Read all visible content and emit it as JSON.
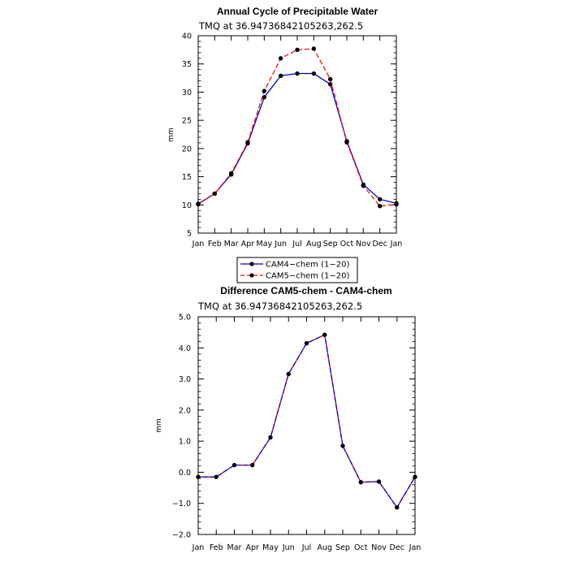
{
  "chart_data": [
    {
      "type": "line",
      "title": "Annual Cycle of Precipitable Water",
      "subtitle": "TMQ at 36.94736842105263,262.5",
      "xlabel": "",
      "ylabel": "mm",
      "categories": [
        "Jan",
        "Feb",
        "Mar",
        "Apr",
        "May",
        "Jun",
        "Jul",
        "Aug",
        "Sep",
        "Oct",
        "Nov",
        "Dec",
        "Jan"
      ],
      "yticks": [
        "5",
        "10",
        "15",
        "20",
        "25",
        "30",
        "35",
        "40"
      ],
      "ylim": [
        5,
        40
      ],
      "grid": false,
      "legend_position": "below",
      "series": [
        {
          "name": "CAM4−chem (1−20)",
          "color": "#0000cc",
          "dash": "solid",
          "values": [
            10.2,
            12.0,
            15.4,
            20.9,
            29.1,
            32.9,
            33.3,
            33.3,
            31.4,
            21.3,
            13.6,
            11.0,
            10.3
          ]
        },
        {
          "name": "CAM5−chem (1−20)",
          "color": "#ee1111",
          "dash": "dashed",
          "values": [
            10.1,
            12.0,
            15.6,
            21.1,
            30.2,
            36.0,
            37.5,
            37.7,
            32.3,
            21.1,
            13.4,
            9.8,
            10.1
          ]
        }
      ]
    },
    {
      "type": "line",
      "title": "Difference CAM5-chem - CAM4-chem",
      "subtitle": "TMQ at 36.94736842105263,262.5",
      "xlabel": "",
      "ylabel": "mm",
      "categories": [
        "Jan",
        "Feb",
        "Mar",
        "Apr",
        "May",
        "Jun",
        "Jul",
        "Aug",
        "Sep",
        "Oct",
        "Nov",
        "Dec",
        "Jan"
      ],
      "yticks": [
        "−2.0",
        "−1.0",
        "0.0",
        "1.0",
        "2.0",
        "3.0",
        "4.0",
        "5.0"
      ],
      "ylim": [
        -2,
        5
      ],
      "grid": false,
      "series": [
        {
          "name": "",
          "color": "#0000cc",
          "overlay_color": "#ee1111",
          "dash": "solid",
          "values": [
            -0.15,
            -0.15,
            0.23,
            0.23,
            1.12,
            3.16,
            4.15,
            4.42,
            0.85,
            -0.32,
            -0.3,
            -1.13,
            -0.15
          ]
        }
      ]
    }
  ]
}
